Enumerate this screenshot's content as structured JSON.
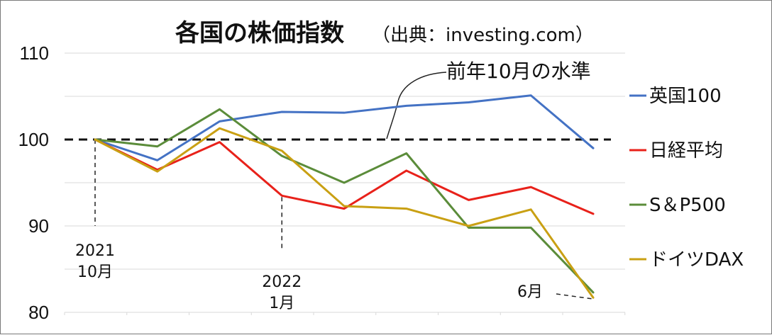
{
  "chart_data": {
    "type": "line",
    "title": "各国の株価指数",
    "subtitle": "（出典：investing.com）",
    "ylim": [
      80,
      110
    ],
    "yticks": [
      80,
      90,
      100,
      110
    ],
    "grid": true,
    "legend_position": "right",
    "x_count": 9,
    "xlabels": [
      {
        "index": 0,
        "lines": [
          "2021",
          "10月"
        ]
      },
      {
        "index": 3,
        "lines": [
          "2022",
          "1月"
        ]
      },
      {
        "index": 8,
        "lines": [
          "6月"
        ]
      }
    ],
    "reference_line": {
      "value": 100,
      "label": "前年10月の水準"
    },
    "series": [
      {
        "name": "英国100",
        "color": "#4472c4",
        "values": [
          100,
          97.6,
          102.1,
          103.2,
          103.1,
          103.9,
          104.3,
          105.1,
          99.0
        ]
      },
      {
        "name": "日経平均",
        "color": "#e8211a",
        "values": [
          100,
          96.5,
          99.7,
          93.5,
          92.0,
          96.4,
          93.0,
          94.5,
          91.4
        ]
      },
      {
        "name": "S＆P500",
        "color": "#5b8c3a",
        "values": [
          100,
          99.2,
          103.5,
          98.1,
          95.0,
          98.4,
          89.8,
          89.8,
          82.3
        ]
      },
      {
        "name": "ドイツDAX",
        "color": "#c9a013",
        "values": [
          100,
          96.3,
          101.3,
          98.7,
          92.3,
          92.0,
          90.0,
          91.9,
          81.7
        ]
      }
    ]
  }
}
